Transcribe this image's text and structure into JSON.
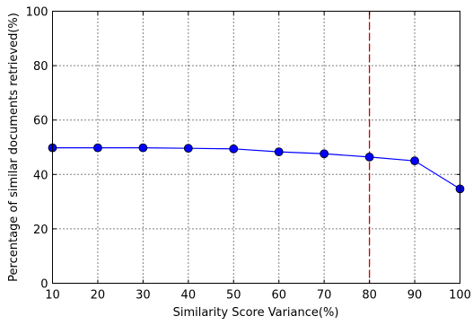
{
  "chart_data": {
    "type": "line",
    "title": "",
    "xlabel": "Similarity Score Variance(%)",
    "ylabel": "Percentage of similar documents retrieved(%)",
    "xlim": [
      10,
      100
    ],
    "ylim": [
      0,
      100
    ],
    "xticks": [
      "10",
      "20",
      "30",
      "40",
      "50",
      "60",
      "70",
      "80",
      "90",
      "100"
    ],
    "yticks": [
      "0",
      "20",
      "40",
      "60",
      "80",
      "100"
    ],
    "grid": true,
    "legend": "none",
    "series": [
      {
        "x": [
          10,
          20,
          30,
          40,
          50,
          60,
          70,
          80,
          90,
          100
        ],
        "values": [
          49.8,
          49.8,
          49.8,
          49.6,
          49.4,
          48.3,
          47.6,
          46.4,
          45.0,
          34.7
        ],
        "color": "#0000ff",
        "marker": "circle"
      }
    ],
    "reference_line": {
      "x": 80,
      "color": "#cc0000",
      "style": "dashed"
    }
  }
}
